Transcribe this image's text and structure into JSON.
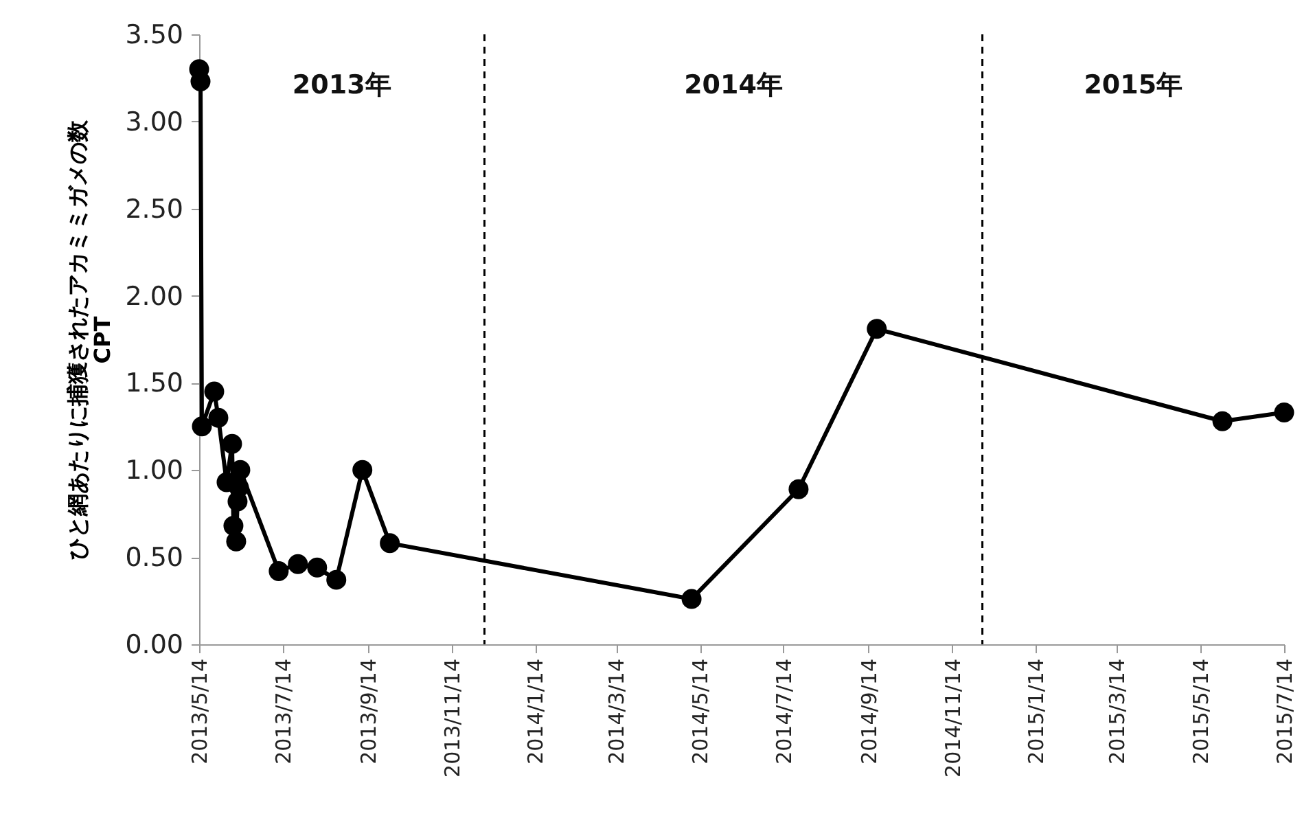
{
  "chart_data": {
    "type": "line",
    "ylabel": "ひと網あたりに捕獲されたアカミミガメの数\nCPT",
    "x": [
      "2013-05-14",
      "2013-05-15",
      "2013-05-16",
      "2013-05-25",
      "2013-05-28",
      "2013-06-03",
      "2013-06-07",
      "2013-06-08",
      "2013-06-10",
      "2013-06-11",
      "2013-06-12",
      "2013-06-13",
      "2013-07-11",
      "2013-07-25",
      "2013-08-08",
      "2013-08-22",
      "2013-09-10",
      "2013-09-30",
      "2014-05-08",
      "2014-07-25",
      "2014-09-20",
      "2015-05-30",
      "2015-07-14"
    ],
    "series": [
      {
        "color": "#000000",
        "values": [
          3.3,
          3.23,
          1.25,
          1.45,
          1.3,
          0.93,
          1.15,
          0.68,
          0.59,
          0.82,
          0.9,
          1.0,
          0.42,
          0.46,
          0.44,
          0.37,
          1.0,
          0.58,
          0.26,
          0.89,
          1.81,
          1.28,
          1.33
        ]
      }
    ],
    "marker": "circle",
    "line_style": "solid",
    "xlim": [
      "2013-05-14",
      "2015-07-14"
    ],
    "xticks": [
      {
        "value": "2013-05-14",
        "label": "2013/5/14"
      },
      {
        "value": "2013-07-14",
        "label": "2013/7/14"
      },
      {
        "value": "2013-09-14",
        "label": "2013/9/14"
      },
      {
        "value": "2013-11-14",
        "label": "2013/11/14"
      },
      {
        "value": "2014-01-14",
        "label": "2014/1/14"
      },
      {
        "value": "2014-03-14",
        "label": "2014/3/14"
      },
      {
        "value": "2014-05-14",
        "label": "2014/5/14"
      },
      {
        "value": "2014-07-14",
        "label": "2014/7/14"
      },
      {
        "value": "2014-09-14",
        "label": "2014/9/14"
      },
      {
        "value": "2014-11-14",
        "label": "2014/11/14"
      },
      {
        "value": "2015-01-14",
        "label": "2015/1/14"
      },
      {
        "value": "2015-03-14",
        "label": "2015/3/14"
      },
      {
        "value": "2015-05-14",
        "label": "2015/5/14"
      },
      {
        "value": "2015-07-14",
        "label": "2015/7/14"
      }
    ],
    "ylim": [
      0,
      3.5
    ],
    "yticks": [
      {
        "value": 0,
        "label": "0.00"
      },
      {
        "value": 0.5,
        "label": "0.50"
      },
      {
        "value": 1,
        "label": "1.00"
      },
      {
        "value": 1.5,
        "label": "1.50"
      },
      {
        "value": 2,
        "label": "2.00"
      },
      {
        "value": 2.5,
        "label": "2.50"
      },
      {
        "value": 3,
        "label": "3.00"
      },
      {
        "value": 3.5,
        "label": "3.50"
      }
    ],
    "ref_lines": [
      {
        "axis": "x",
        "value": "2013-12-08",
        "color": "#000000",
        "line_style": "dashed"
      },
      {
        "axis": "x",
        "value": "2014-12-06",
        "color": "#000000",
        "line_style": "dashed"
      }
    ],
    "annotations": [
      "2013年",
      "2014年",
      "2015年"
    ],
    "tick_labels": true
  }
}
